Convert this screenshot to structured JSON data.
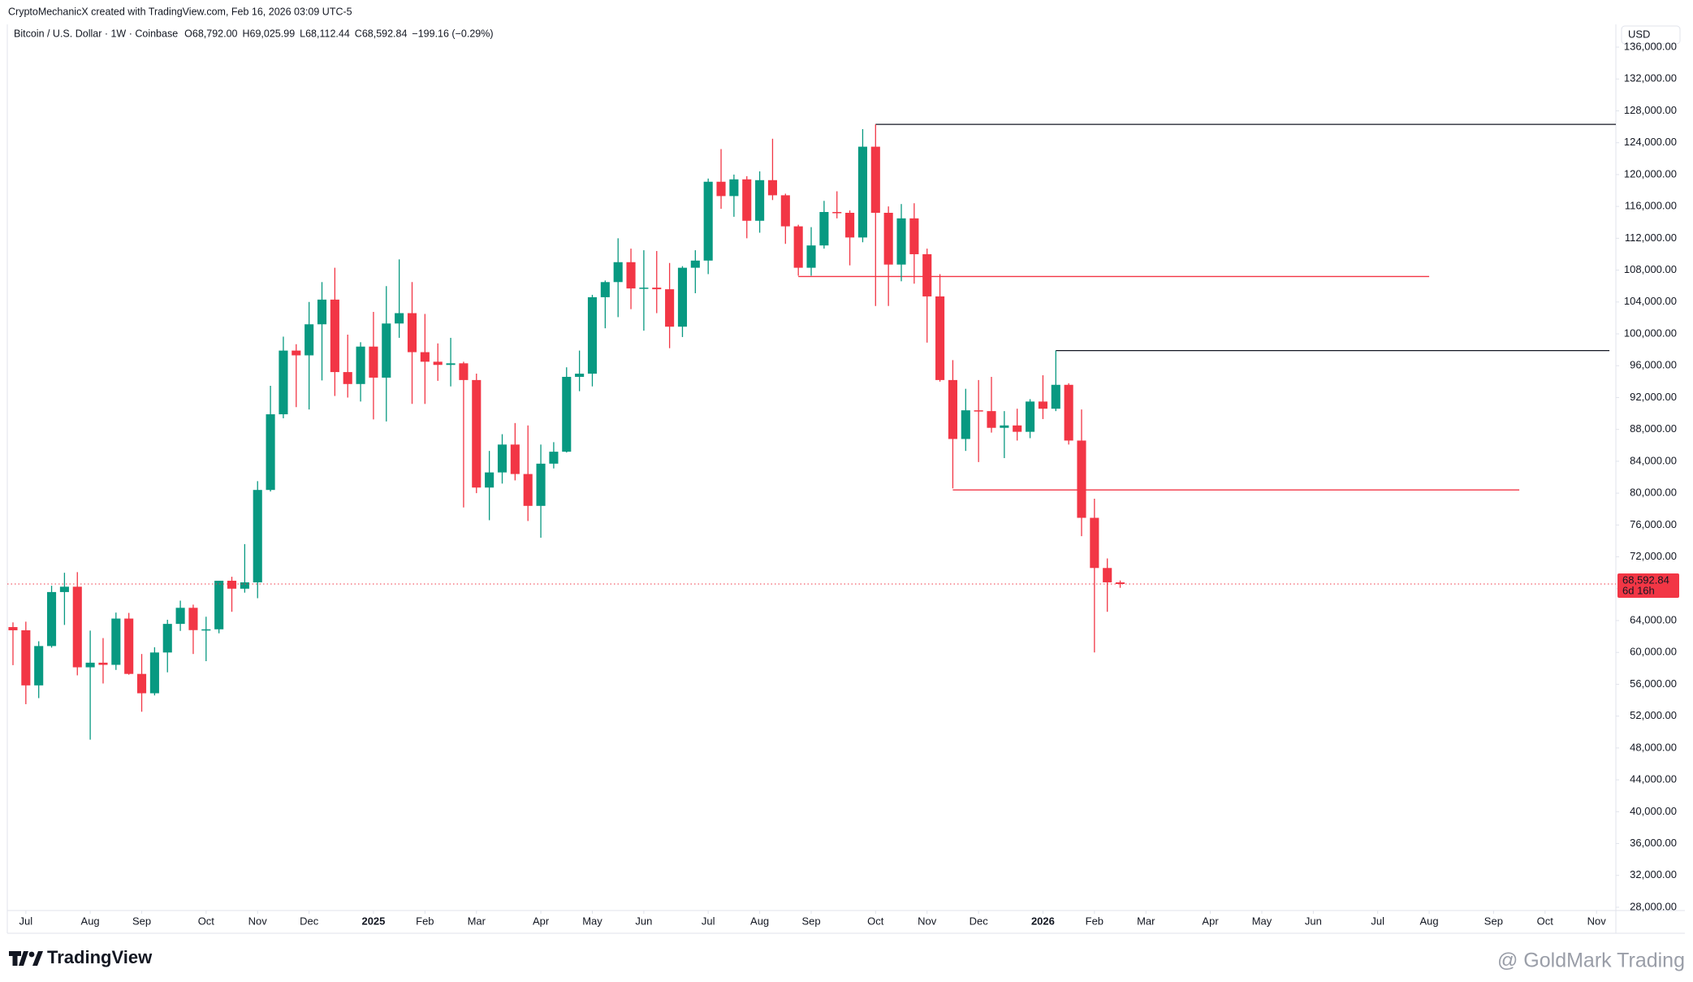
{
  "header": "CryptoMechanicX created with TradingView.com, Feb 16, 2026 03:09 UTC-5",
  "footer": {
    "logo": "TradingView",
    "watermark": "@ GoldMark Trading"
  },
  "chart_data": {
    "type": "candlestick",
    "title": "Bitcoin / U.S. Dollar · 1W · Coinbase",
    "ohlc_legend": [
      "O",
      "68,792.00",
      "H",
      "69,025.99",
      "L",
      "68,112.44",
      "C",
      "68,592.84",
      "−199.16 (−0.29%)"
    ],
    "currency": "USD",
    "up_color": "#089981",
    "down_color": "#f23645",
    "open": [
      63180,
      62780,
      55860,
      60800,
      67580,
      68250,
      58130,
      58710,
      58440,
      64250,
      57300,
      54870,
      59990,
      63580,
      65600,
      62800,
      62900,
      69000,
      68000,
      68800,
      80400,
      89900,
      97900,
      97300,
      101200,
      104300,
      95200,
      93700,
      98400,
      94500,
      101300,
      102600,
      97700,
      96500,
      96100,
      96300,
      94200,
      80700,
      82600,
      86100,
      82400,
      78400,
      83700,
      85200,
      94600,
      95000,
      104600,
      106500,
      109000,
      105700,
      105800,
      105600,
      100900,
      108300,
      109200,
      119100,
      117300,
      119400,
      114200,
      119300,
      117400,
      113500,
      108300,
      111100,
      115300,
      115200,
      112100,
      123500,
      115200,
      108700,
      114500,
      110000,
      104700,
      94200,
      86800,
      90400,
      90300,
      88200,
      88500,
      87700,
      91500,
      90600,
      93600,
      86600,
      76900,
      70600,
      68792.0
    ],
    "high": [
      63770,
      63860,
      61400,
      68370,
      70000,
      70080,
      62740,
      61800,
      65000,
      64960,
      59800,
      60650,
      64100,
      66500,
      66000,
      64480,
      69000,
      69500,
      73600,
      81500,
      93480,
      99650,
      98700,
      104000,
      106500,
      108300,
      99900,
      98950,
      102750,
      106000,
      109350,
      106500,
      102500,
      98800,
      99500,
      96500,
      95000,
      85300,
      87400,
      88800,
      88500,
      86100,
      86400,
      95800,
      97900,
      104900,
      106700,
      112000,
      110700,
      110500,
      110400,
      108900,
      108500,
      110500,
      119500,
      123200,
      120000,
      119800,
      120400,
      124500,
      117600,
      113700,
      113400,
      116700,
      117900,
      115500,
      125700,
      126300,
      116000,
      116300,
      116400,
      110700,
      107500,
      96700,
      93100,
      94200,
      94600,
      90300,
      90600,
      91800,
      94800,
      97900,
      93800,
      90500,
      79300,
      71800,
      69025.99
    ],
    "low": [
      58400,
      53500,
      54260,
      60600,
      63450,
      57120,
      49050,
      56100,
      57800,
      57200,
      52550,
      54600,
      57500,
      62700,
      59800,
      58900,
      62400,
      65100,
      67500,
      66800,
      80200,
      89400,
      90800,
      90500,
      94150,
      92200,
      92000,
      91500,
      89250,
      89000,
      99500,
      91200,
      91200,
      94100,
      93400,
      78200,
      80000,
      76600,
      81200,
      81600,
      76500,
      74400,
      83100,
      85100,
      92800,
      93400,
      100700,
      102100,
      103100,
      100400,
      102600,
      98200,
      99600,
      105100,
      107500,
      115700,
      114700,
      112000,
      112700,
      116800,
      111300,
      107300,
      107300,
      110700,
      114500,
      108600,
      111500,
      103500,
      103500,
      106600,
      106300,
      98900,
      94000,
      80600,
      85300,
      83900,
      87600,
      84400,
      86600,
      86900,
      89300,
      90300,
      86100,
      74600,
      60000,
      65100,
      68112.44
    ],
    "close": [
      62780,
      55860,
      60800,
      67580,
      68250,
      58130,
      58710,
      58440,
      64250,
      57300,
      54870,
      59990,
      63580,
      65600,
      62800,
      62900,
      69000,
      68000,
      68800,
      80400,
      89900,
      97900,
      97300,
      101200,
      104300,
      95200,
      93700,
      98400,
      94500,
      101300,
      102600,
      97700,
      96500,
      96100,
      96300,
      94200,
      80700,
      82600,
      86100,
      82400,
      78400,
      83700,
      85200,
      94600,
      95000,
      104600,
      106500,
      109000,
      105700,
      105800,
      105600,
      100900,
      108300,
      109200,
      119100,
      117300,
      119400,
      114200,
      119300,
      117400,
      113500,
      108300,
      111100,
      115300,
      115200,
      112100,
      123500,
      115200,
      108700,
      114500,
      110000,
      104700,
      94200,
      86800,
      90400,
      90300,
      88200,
      88500,
      87700,
      91500,
      90600,
      93600,
      86600,
      76900,
      70600,
      68800,
      68592.84
    ],
    "last_price": {
      "value": 68592.84,
      "label": "68,592.84",
      "countdown": "6d 16h",
      "color": "#f23645"
    },
    "levels": [
      {
        "value": 126300,
        "from": 67,
        "to": 124.5,
        "color": "#131722"
      },
      {
        "value": 107200,
        "from": 61,
        "to": 110,
        "color": "#f23645"
      },
      {
        "value": 97900,
        "from": 81,
        "to": 124,
        "color": "#131722"
      },
      {
        "value": 80400,
        "from": 73,
        "to": 117,
        "color": "#f23645"
      }
    ],
    "xlim": [
      -0.44,
      124.5
    ],
    "xticks": [
      {
        "value": 1,
        "label": "Jul"
      },
      {
        "value": 6,
        "label": "Aug"
      },
      {
        "value": 10,
        "label": "Sep"
      },
      {
        "value": 15,
        "label": "Oct"
      },
      {
        "value": 19,
        "label": "Nov"
      },
      {
        "value": 23,
        "label": "Dec"
      },
      {
        "value": 28,
        "label": "2025"
      },
      {
        "value": 32,
        "label": "Feb"
      },
      {
        "value": 36,
        "label": "Mar"
      },
      {
        "value": 41,
        "label": "Apr"
      },
      {
        "value": 45,
        "label": "May"
      },
      {
        "value": 49,
        "label": "Jun"
      },
      {
        "value": 54,
        "label": "Jul"
      },
      {
        "value": 58,
        "label": "Aug"
      },
      {
        "value": 62,
        "label": "Sep"
      },
      {
        "value": 67,
        "label": "Oct"
      },
      {
        "value": 71,
        "label": "Nov"
      },
      {
        "value": 75,
        "label": "Dec"
      },
      {
        "value": 80,
        "label": "2026"
      },
      {
        "value": 84,
        "label": "Feb"
      },
      {
        "value": 88,
        "label": "Mar"
      },
      {
        "value": 93,
        "label": "Apr"
      },
      {
        "value": 97,
        "label": "May"
      },
      {
        "value": 101,
        "label": "Jun"
      },
      {
        "value": 106,
        "label": "Jul"
      },
      {
        "value": 110,
        "label": "Aug"
      },
      {
        "value": 115,
        "label": "Sep"
      },
      {
        "value": 119,
        "label": "Oct"
      },
      {
        "value": 123,
        "label": "Nov"
      }
    ],
    "ylim": [
      27590,
      138860
    ],
    "yticks": [
      {
        "value": 28000,
        "label": "28,000.00"
      },
      {
        "value": 32000,
        "label": "32,000.00"
      },
      {
        "value": 36000,
        "label": "36,000.00"
      },
      {
        "value": 40000,
        "label": "40,000.00"
      },
      {
        "value": 44000,
        "label": "44,000.00"
      },
      {
        "value": 48000,
        "label": "48,000.00"
      },
      {
        "value": 52000,
        "label": "52,000.00"
      },
      {
        "value": 56000,
        "label": "56,000.00"
      },
      {
        "value": 60000,
        "label": "60,000.00"
      },
      {
        "value": 64000,
        "label": "64,000.00"
      },
      {
        "value": 68000,
        "label": "68,000.00"
      },
      {
        "value": 72000,
        "label": "72,000.00"
      },
      {
        "value": 76000,
        "label": "76,000.00"
      },
      {
        "value": 80000,
        "label": "80,000.00"
      },
      {
        "value": 84000,
        "label": "84,000.00"
      },
      {
        "value": 88000,
        "label": "88,000.00"
      },
      {
        "value": 92000,
        "label": "92,000.00"
      },
      {
        "value": 96000,
        "label": "96,000.00"
      },
      {
        "value": 100000,
        "label": "100,000.00"
      },
      {
        "value": 104000,
        "label": "104,000.00"
      },
      {
        "value": 108000,
        "label": "108,000.00"
      },
      {
        "value": 112000,
        "label": "112,000.00"
      },
      {
        "value": 116000,
        "label": "116,000.00"
      },
      {
        "value": 120000,
        "label": "120,000.00"
      },
      {
        "value": 124000,
        "label": "124,000.00"
      },
      {
        "value": 128000,
        "label": "128,000.00"
      },
      {
        "value": 132000,
        "label": "132,000.00"
      },
      {
        "value": 136000,
        "label": "136,000.00"
      }
    ],
    "grid": false
  }
}
